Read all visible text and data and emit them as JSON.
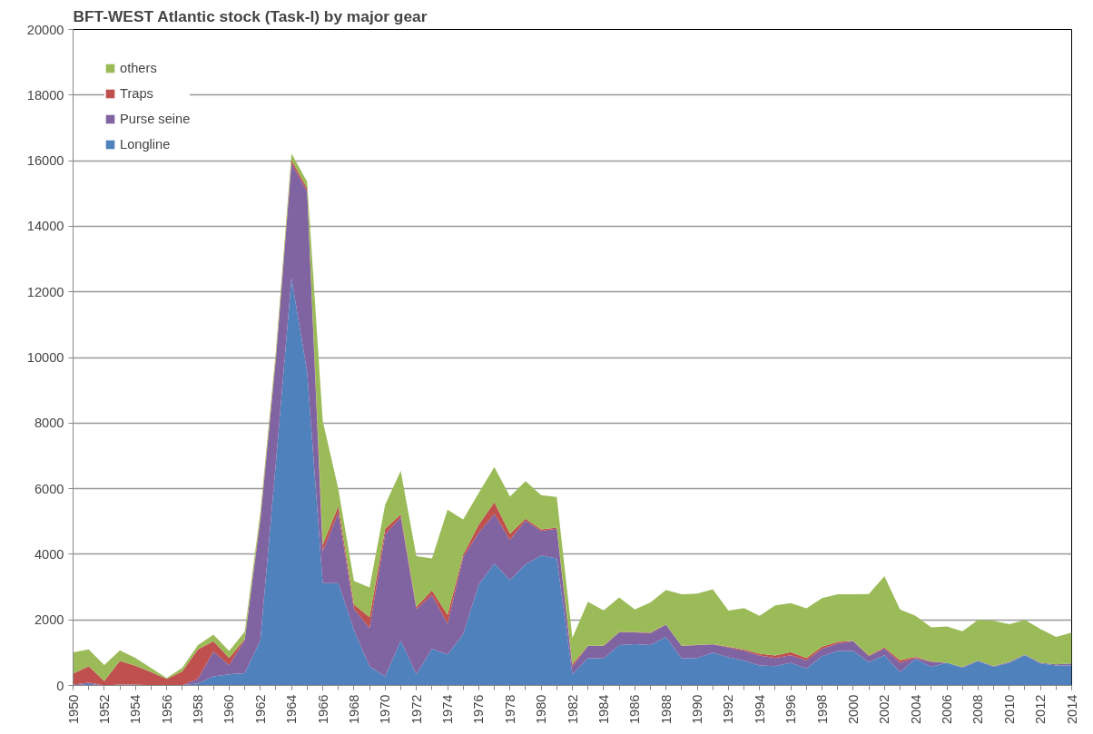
{
  "chart_data": {
    "type": "area",
    "stacked": true,
    "title": "BFT-WEST Atlantic stock  (Task-I)  by major gear",
    "x": [
      1950,
      1951,
      1952,
      1953,
      1954,
      1955,
      1956,
      1957,
      1958,
      1959,
      1960,
      1961,
      1962,
      1963,
      1964,
      1965,
      1966,
      1967,
      1968,
      1969,
      1970,
      1971,
      1972,
      1973,
      1974,
      1975,
      1976,
      1977,
      1978,
      1979,
      1980,
      1981,
      1982,
      1983,
      1984,
      1985,
      1986,
      1987,
      1988,
      1989,
      1990,
      1991,
      1992,
      1993,
      1994,
      1995,
      1996,
      1997,
      1998,
      1999,
      2000,
      2001,
      2002,
      2003,
      2004,
      2005,
      2006,
      2007,
      2008,
      2009,
      2010,
      2011,
      2012,
      2013,
      2014
    ],
    "series": [
      {
        "name": "Longline",
        "color": "#4f81bd",
        "values": [
          0,
          50,
          0,
          20,
          30,
          10,
          0,
          10,
          60,
          280,
          340,
          370,
          1370,
          6800,
          12420,
          9560,
          3120,
          3120,
          1690,
          580,
          280,
          1360,
          340,
          1120,
          940,
          1560,
          3080,
          3720,
          3210,
          3690,
          3960,
          3870,
          340,
          840,
          820,
          1230,
          1260,
          1230,
          1480,
          820,
          840,
          1000,
          860,
          760,
          610,
          590,
          690,
          520,
          890,
          1050,
          1050,
          710,
          920,
          410,
          810,
          570,
          690,
          540,
          740,
          570,
          690,
          920,
          670,
          610,
          610
        ]
      },
      {
        "name": "Purse seine",
        "color": "#8064a2",
        "values": [
          20,
          40,
          0,
          10,
          0,
          0,
          0,
          0,
          150,
          760,
          280,
          1010,
          3650,
          3150,
          3500,
          5500,
          970,
          2150,
          650,
          1170,
          4330,
          3770,
          1990,
          1630,
          950,
          2350,
          1580,
          1510,
          1230,
          1340,
          750,
          910,
          240,
          360,
          380,
          390,
          360,
          370,
          370,
          380,
          390,
          250,
          300,
          300,
          300,
          250,
          230,
          250,
          220,
          230,
          300,
          180,
          210,
          280,
          30,
          150,
          0,
          20,
          20,
          20,
          20,
          20,
          20,
          30,
          60
        ]
      },
      {
        "name": "Traps",
        "color": "#c0504d",
        "values": [
          340,
          500,
          140,
          720,
          570,
          400,
          200,
          420,
          890,
          310,
          220,
          30,
          80,
          80,
          100,
          100,
          200,
          200,
          130,
          330,
          160,
          90,
          70,
          150,
          260,
          80,
          240,
          360,
          190,
          50,
          50,
          30,
          70,
          10,
          10,
          10,
          10,
          10,
          10,
          10,
          10,
          10,
          20,
          30,
          60,
          70,
          100,
          70,
          70,
          50,
          10,
          20,
          30,
          80,
          30,
          10,
          0,
          0,
          0,
          0,
          10,
          0,
          0,
          0,
          0
        ]
      },
      {
        "name": "others",
        "color": "#9bbb59",
        "values": [
          650,
          510,
          480,
          320,
          240,
          120,
          30,
          110,
          130,
          200,
          210,
          230,
          180,
          180,
          200,
          200,
          3780,
          520,
          720,
          910,
          740,
          1320,
          1540,
          970,
          3210,
          1070,
          970,
          1070,
          1130,
          1150,
          1040,
          940,
          800,
          1340,
          1080,
          1050,
          690,
          920,
          1050,
          1570,
          1560,
          1670,
          1100,
          1270,
          1150,
          1530,
          1490,
          1510,
          1480,
          1450,
          1420,
          1880,
          2170,
          1550,
          1250,
          1040,
          1110,
          1090,
          1240,
          1380,
          1150,
          1060,
          1030,
          840,
          940
        ]
      }
    ],
    "xlim": [
      1950,
      2014
    ],
    "xticks": [
      1950,
      1952,
      1954,
      1956,
      1958,
      1960,
      1962,
      1964,
      1966,
      1968,
      1970,
      1972,
      1974,
      1976,
      1978,
      1980,
      1982,
      1984,
      1986,
      1988,
      1990,
      1992,
      1994,
      1996,
      1998,
      2000,
      2002,
      2004,
      2006,
      2008,
      2010,
      2012,
      2014
    ],
    "ylim": [
      0,
      20000
    ],
    "yticks": [
      0,
      2000,
      4000,
      6000,
      8000,
      10000,
      12000,
      14000,
      16000,
      18000,
      20000
    ],
    "grid": "y",
    "legend": "top left"
  }
}
